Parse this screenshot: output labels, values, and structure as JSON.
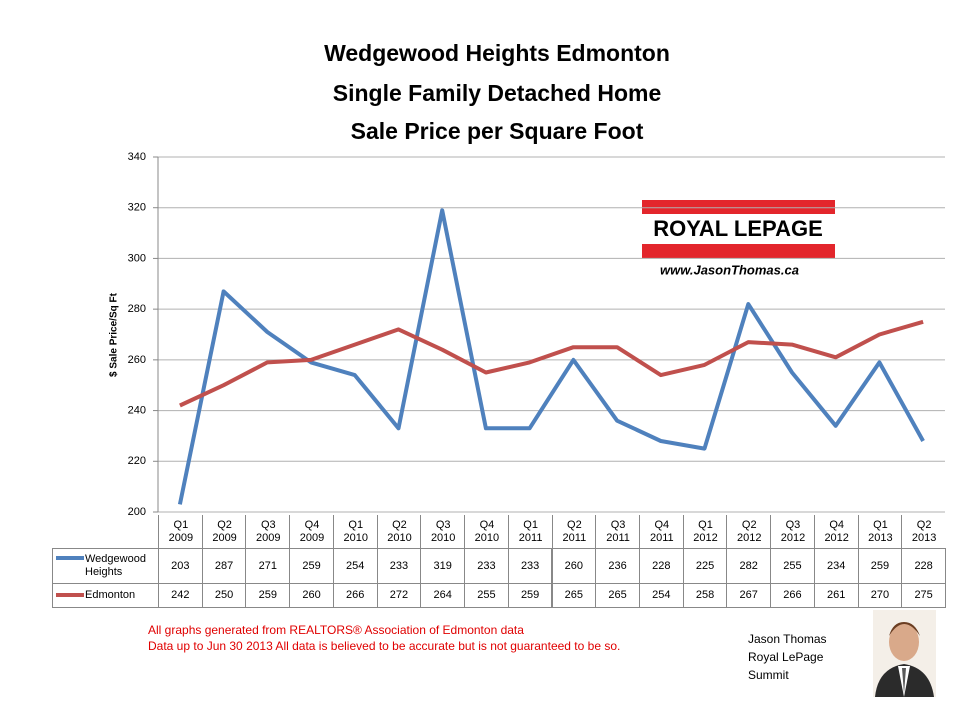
{
  "chart_data": {
    "type": "line",
    "title": [
      "Wedgewood Heights Edmonton",
      "Single Family Detached Home",
      "Sale Price per Square Foot"
    ],
    "ylabel": "$ Sale Price/Sq Ft",
    "categories": [
      "Q1 2009",
      "Q2 2009",
      "Q3 2009",
      "Q4 2009",
      "Q1 2010",
      "Q2 2010",
      "Q3 2010",
      "Q4 2010",
      "Q1 2011",
      "Q2 2011",
      "Q3 2011",
      "Q4 2011",
      "Q1 2012",
      "Q2 2012",
      "Q3 2012",
      "Q4 2012",
      "Q1 2013",
      "Q2 2013"
    ],
    "series": [
      {
        "name": "Wedgewood Heights",
        "color": "#4f81bd",
        "values": [
          203,
          287,
          271,
          259,
          254,
          233,
          319,
          233,
          233,
          260,
          236,
          228,
          225,
          282,
          255,
          234,
          259,
          228
        ]
      },
      {
        "name": "Edmonton",
        "color": "#c0504d",
        "values": [
          242,
          250,
          259,
          260,
          266,
          272,
          264,
          255,
          259,
          265,
          265,
          254,
          258,
          267,
          266,
          261,
          270,
          275
        ]
      }
    ],
    "ylim": [
      200,
      340
    ],
    "yticks": [
      200,
      220,
      240,
      260,
      280,
      300,
      320,
      340
    ],
    "grid": true
  },
  "logo": {
    "brand": "ROYAL LEPAGE",
    "website": "www.JasonThomas.ca"
  },
  "notes": [
    "All graphs generated from REALTORS® Association of Edmonton data",
    "Data up to  Jun 30 2013  All data is believed to be accurate but is not guaranteed to be so."
  ],
  "signature": [
    "Jason Thomas",
    "Royal LePage",
    "Summit"
  ]
}
